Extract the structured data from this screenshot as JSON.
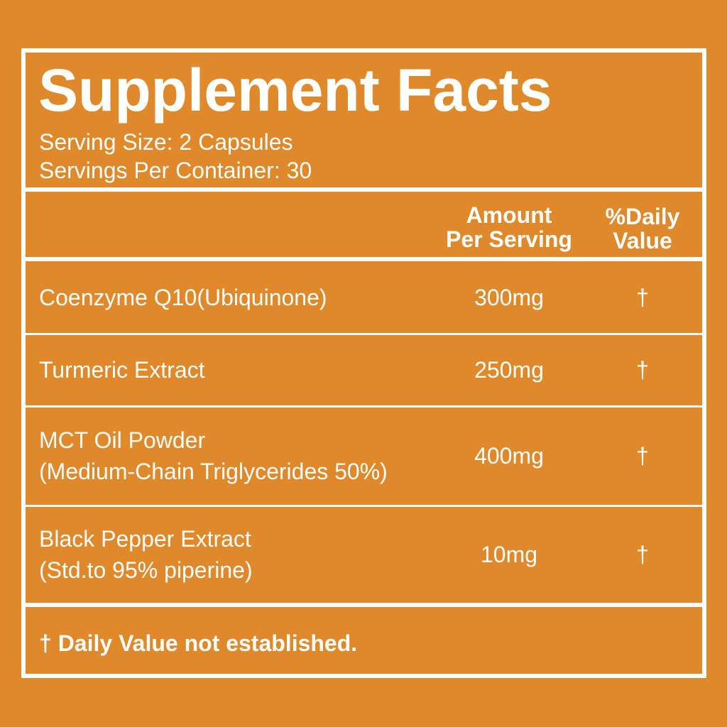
{
  "label": {
    "title": "Supplement Facts",
    "serving_size": "Serving Size: 2 Capsules",
    "servings_per_container": "Servings Per Container: 30",
    "columns": {
      "amount": [
        "Amount",
        "Per Serving"
      ],
      "daily_value": [
        "%Daily",
        "Value"
      ]
    },
    "rows": [
      {
        "name": [
          "Coenzyme Q10(Ubiquinone)"
        ],
        "amount": "300mg",
        "daily_value": "†"
      },
      {
        "name": [
          "Turmeric Extract"
        ],
        "amount": "250mg",
        "daily_value": "†"
      },
      {
        "name": [
          "MCT Oil Powder",
          "(Medium-Chain Triglycerides 50%)"
        ],
        "amount": "400mg",
        "daily_value": "†"
      },
      {
        "name": [
          "Black Pepper Extract",
          "(Std.to 95% piperine)"
        ],
        "amount": "10mg",
        "daily_value": "†"
      }
    ],
    "footnote": "† Daily Value not established."
  }
}
